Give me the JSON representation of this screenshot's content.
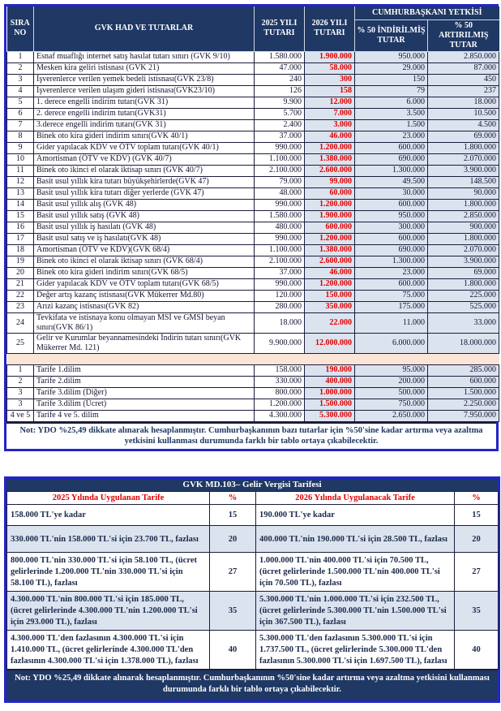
{
  "colors": {
    "navy": "#1F3864",
    "royal": "#2424C8",
    "lblue": "#DBE3EF",
    "peach": "#FBE5D6",
    "red": "#E00000"
  },
  "table1": {
    "header": {
      "sira_no": "SIRA NO",
      "gvk": "GVK HAD VE TUTARLAR",
      "y2025": "2025 YILI TUTARI",
      "y2026": "2026 YILI TUTARI",
      "cb_yetkisi": "CUMHURBAŞKANI YETKİSİ",
      "indirilmis": "% 50 İNDİRİLMİŞ TUTAR",
      "artirilmis": "% 50 ARTIRILMIŞ TUTAR"
    },
    "rows": [
      {
        "no": "1",
        "label": "Esnaf muaflığı internet satış hasılat tutarı sınırı (GVK 9/10)",
        "y2025": "1.580.000",
        "y2026": "1.900.000",
        "ind": "950.000",
        "art": "2.850.000"
      },
      {
        "no": "2",
        "label": "Mesken kira geliri istisnası (GVK 21)",
        "y2025": "47.000",
        "y2026": "58.000",
        "ind": "29.000",
        "art": "87.000"
      },
      {
        "no": "3",
        "label": "İşverenlerce verilen yemek bedeli istisnası(GVK 23/8)",
        "y2025": "240",
        "y2026": "300",
        "ind": "150",
        "art": "450"
      },
      {
        "no": "4",
        "label": "İşverenlerce verilen ulaşım gideri istisnası(GVK23/10)",
        "y2025": "126",
        "y2026": "158",
        "ind": "79",
        "art": "237"
      },
      {
        "no": "5",
        "label": "1. derece engelli indirim tutarı(GVK 31)",
        "y2025": "9.900",
        "y2026": "12.000",
        "ind": "6.000",
        "art": "18.000"
      },
      {
        "no": "6",
        "label": "2. derece engelli indirim tutarı(GVK31)",
        "y2025": "5.700",
        "y2026": "7.000",
        "ind": "3.500",
        "art": "10.500"
      },
      {
        "no": "7",
        "label": "3.derece engelli indirim tutarı(GVK 31)",
        "y2025": "2.400",
        "y2026": "3.000",
        "ind": "1.500",
        "art": "4.500"
      },
      {
        "no": "8",
        "label": "Binek oto kira gideri indirim sınırı(GVK 40/1)",
        "y2025": "37.000",
        "y2026": "46.000",
        "ind": "23.000",
        "art": "69.000"
      },
      {
        "no": "9",
        "label": "Gider yapılacak KDV ve ÖTV toplam tutarı(GVK 40/1)",
        "y2025": "990.000",
        "y2026": "1.200.000",
        "ind": "600.000",
        "art": "1.800.000"
      },
      {
        "no": "10",
        "label": "Amortisman (ÖTV ve KDV) (GVK 40/7)",
        "y2025": "1.100.000",
        "y2026": "1.380.000",
        "ind": "690.000",
        "art": "2.070.000"
      },
      {
        "no": "11",
        "label": "Binek oto ikinci el olarak iktisap sınırı (GVK 40/7)",
        "y2025": "2.100.000",
        "y2026": "2.600.000",
        "ind": "1.300.000",
        "art": "3.900.000"
      },
      {
        "no": "12",
        "label": "Basit usul yıllık kira tutarı büyükşehirlerde(GVK 47)",
        "y2025": "79.000",
        "y2026": "99.000",
        "ind": "49.500",
        "art": "148.500"
      },
      {
        "no": "13",
        "label": "Basit usul yıllık kira tutarı diğer yerlerde (GVK 47)",
        "y2025": "48.000",
        "y2026": "60.000",
        "ind": "30.000",
        "art": "90.000"
      },
      {
        "no": "14",
        "label": "Basit usul yıllık alış (GVK 48)",
        "y2025": "990.000",
        "y2026": "1.200.000",
        "ind": "600.000",
        "art": "1.800.000"
      },
      {
        "no": "15",
        "label": "Basit usul yıllık satış (GVK 48)",
        "y2025": "1.580.000",
        "y2026": "1.900.000",
        "ind": "950.000",
        "art": "2.850.000"
      },
      {
        "no": "16",
        "label": "Basit usul yıllık iş hasılatı (GVK 48)",
        "y2025": "480.000",
        "y2026": "600.000",
        "ind": "300.000",
        "art": "900.000"
      },
      {
        "no": "17",
        "label": "Basit usul satış ve iş hasılatı(GVK 48)",
        "y2025": "990.000",
        "y2026": "1.200.000",
        "ind": "600.000",
        "art": "1.800.000"
      },
      {
        "no": "18",
        "label": "Amortisman (ÖTV ve KDV)(GVK 68/4)",
        "y2025": "1.100.000",
        "y2026": "1.380.000",
        "ind": "690.000",
        "art": "2.070.000"
      },
      {
        "no": "19",
        "label": "Binek oto ikinci el olarak iktisap sınırı (GVK 68/4)",
        "y2025": "2.100.000",
        "y2026": "2.600.000",
        "ind": "1.300.000",
        "art": "3.900.000"
      },
      {
        "no": "20",
        "label": "Binek oto kira gideri indirim sınırı(GVK 68/5)",
        "y2025": "37.000",
        "y2026": "46.000",
        "ind": "23.000",
        "art": "69.000"
      },
      {
        "no": "21",
        "label": "Gider yapılacak KDV ve ÖTV toplam tutarı(GVK 68/5)",
        "y2025": "990.000",
        "y2026": "1.200.000",
        "ind": "600.000",
        "art": "1.800.000"
      },
      {
        "no": "22",
        "label": "Değer artış kazanç istisnası(GVK Mükerrer Md.80)",
        "y2025": "120.000",
        "y2026": "150.000",
        "ind": "75.000",
        "art": "225.000"
      },
      {
        "no": "23",
        "label": "Arızi kazanç istisnası(GVK 82)",
        "y2025": "280.000",
        "y2026": "350.000",
        "ind": "175.000",
        "art": "525.000"
      },
      {
        "no": "24",
        "label": "Tevkifata ve istisnaya konu olmayan MSİ ve GMSİ beyan sınırı(GVK 86/1)",
        "y2025": "18.000",
        "y2026": "22.000",
        "ind": "11.000",
        "art": "33.000"
      },
      {
        "no": "25",
        "label": "Gelir ve Kurumlar beyannamesindeki İndirin tutarı sınırı(GVK Mükerrer Md. 121)",
        "y2025": "9.900.000",
        "y2026": "12.000.000",
        "ind": "6.000.000",
        "art": "18.000.000"
      }
    ],
    "tarife_rows": [
      {
        "no": "1",
        "label": "Tarife 1.dilim",
        "y2025": "158.000",
        "y2026": "190.000",
        "ind": "95.000",
        "art": "285.000"
      },
      {
        "no": "2",
        "label": "Tarife 2.dilim",
        "y2025": "330.000",
        "y2026": "400.000",
        "ind": "200.000",
        "art": "600.000"
      },
      {
        "no": "3",
        "label": "Tarife 3.dilim (Diğer)",
        "y2025": "800.000",
        "y2026": "1.000.000",
        "ind": "500.000",
        "art": "1.500.000"
      },
      {
        "no": "3",
        "label": "Tarife 3.dilim (Ücret)",
        "y2025": "1.200.000",
        "y2026": "1.500.000",
        "ind": "750.000",
        "art": "2.250.000"
      },
      {
        "no": "4 ve 5",
        "label": "Tarife 4 ve 5. dilim",
        "y2025": "4.300.000",
        "y2026": "5.300.000",
        "ind": "2.650.000",
        "art": "7.950.000"
      }
    ],
    "note": "Not: YDO %25,49 dikkate alınarak hesaplanmıştır. Cumhurbaşkanının bazı tutarlar için %50'sine kadar artırma veya azaltma yetkisini kullanması durumunda farklı bir tablo ortaya çıkabilecektir."
  },
  "table2": {
    "title": "GVK MD.103– Gelir Vergisi Tarifesi",
    "header": {
      "t2025": "2025 Yılında Uygulanan Tarife",
      "p2025": "%",
      "t2026": "2026 Yılında Uygulanacak Tarife",
      "p2026": "%"
    },
    "rows": [
      {
        "t2025": "158.000 TL'ye kadar",
        "p2025": "15",
        "t2026": "190.000 TL'ye kadar",
        "p2026": "15"
      },
      {
        "t2025": "330.000 TL'nin 158.000 TL'si için 23.700 TL, fazlası",
        "p2025": "20",
        "t2026": "400.000 TL'nin 190.000 TL'si için 28.500 TL, fazlası",
        "p2026": "20"
      },
      {
        "t2025": "800.000 TL'nin 330.000 TL'si için 58.100 TL, (ücret gelirlerinde 1.200.000 TL'nin 330.000 TL'si için 58.100 TL), fazlası",
        "p2025": "27",
        "t2026": "1.000.000 TL'nin 400.000 TL'si için 70.500 TL, (ücret gelirlerinde 1.500.000 TL'nin 400.000 TL'si için 70.500 TL), fazlası",
        "p2026": "27"
      },
      {
        "t2025": "4.300.000 TL'nin 800.000 TL'si için 185.000 TL, (ücret gelirlerinde 4.300.000 TL'nin 1.200.000 TL'si için 293.000 TL), fazlası",
        "p2025": "35",
        "t2026": "5.300.000 TL'nin 1.000.000 TL'si için 232.500 TL, (ücret gelirlerinde 5.300.000 TL'nin 1.500.000 TL'si için 367.500 TL), fazlası",
        "p2026": "35"
      },
      {
        "t2025": "4.300.000 TL'den fazlasının 4.300.000 TL'si için 1.410.000 TL, (ücret gelirlerinde 4.300.000 TL'den fazlasının 4.300.000 TL'si için 1.378.000 TL), fazlası",
        "p2025": "40",
        "t2026": "5.300.000 TL'den fazlasının 5.300.000 TL'si için 1.737.500 TL, (ücret gelirlerinde 5.300.000 TL'den fazlasının 5.300.000 TL'si için 1.697.500 TL), fazlası",
        "p2026": "40"
      }
    ],
    "note": "Not: YDO %25,49 dikkate alınarak hesaplanmıştır. Cumhurbaşkanının %50'sine kadar artırma veya azaltma yetkisini kullanması durumunda farklı bir tablo ortaya çıkabilecektir."
  }
}
